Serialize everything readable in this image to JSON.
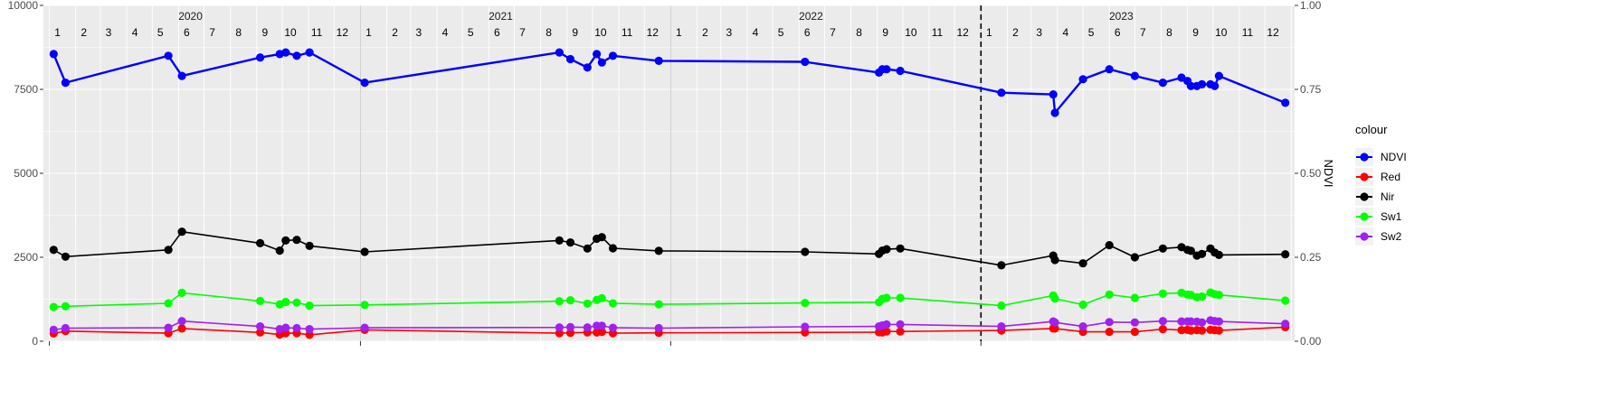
{
  "chart_data": {
    "type": "line",
    "y_left": {
      "range": [
        0,
        10000
      ],
      "ticks": [
        0,
        2500,
        5000,
        7500,
        10000
      ],
      "tick_labels": [
        "0",
        "2500",
        "5000",
        "7500",
        "10000"
      ]
    },
    "y_right": {
      "label": "NDVI",
      "range": [
        0,
        1
      ],
      "ticks": [
        0,
        0.25,
        0.5,
        0.75,
        1
      ],
      "tick_labels": [
        "0.00",
        "0.25",
        "0.50",
        "0.75",
        "1.00"
      ]
    },
    "x_range": [
      "2019-12-25",
      "2024-01-05"
    ],
    "years": [
      {
        "label": "2020",
        "date": "2020-06-15"
      },
      {
        "label": "2021",
        "date": "2021-06-15"
      },
      {
        "label": "2022",
        "date": "2022-06-15"
      },
      {
        "label": "2023",
        "date": "2023-06-15"
      }
    ],
    "month_labels": [
      "1",
      "2",
      "3",
      "4",
      "5",
      "6",
      "7",
      "8",
      "9",
      "10",
      "11",
      "12"
    ],
    "year_boundaries": [
      "2021-01-01",
      "2022-01-01",
      "2023-01-01"
    ],
    "dashed_line_date": "2023-01-01",
    "grid": true,
    "legend": {
      "title": "colour",
      "position": "right"
    },
    "series": [
      {
        "name": "NDVI",
        "color": "#0000FF",
        "axis": "right",
        "points": [
          [
            "2020-01-06",
            0.855
          ],
          [
            "2020-01-20",
            0.77
          ],
          [
            "2020-05-20",
            0.85
          ],
          [
            "2020-06-05",
            0.79
          ],
          [
            "2020-09-05",
            0.845
          ],
          [
            "2020-09-28",
            0.855
          ],
          [
            "2020-10-05",
            0.86
          ],
          [
            "2020-10-18",
            0.85
          ],
          [
            "2020-11-02",
            0.86
          ],
          [
            "2021-01-06",
            0.77
          ],
          [
            "2021-08-23",
            0.86
          ],
          [
            "2021-09-05",
            0.84
          ],
          [
            "2021-09-25",
            0.815
          ],
          [
            "2021-10-06",
            0.855
          ],
          [
            "2021-10-12",
            0.83
          ],
          [
            "2021-10-25",
            0.85
          ],
          [
            "2021-12-18",
            0.835
          ],
          [
            "2022-06-08",
            0.832
          ],
          [
            "2022-09-03",
            0.8
          ],
          [
            "2022-09-07",
            0.81
          ],
          [
            "2022-09-12",
            0.81
          ],
          [
            "2022-09-28",
            0.805
          ],
          [
            "2023-01-25",
            0.74
          ],
          [
            "2023-03-27",
            0.735
          ],
          [
            "2023-03-29",
            0.68
          ],
          [
            "2023-05-01",
            0.78
          ],
          [
            "2023-06-01",
            0.81
          ],
          [
            "2023-07-01",
            0.79
          ],
          [
            "2023-08-03",
            0.77
          ],
          [
            "2023-08-25",
            0.785
          ],
          [
            "2023-09-01",
            0.775
          ],
          [
            "2023-09-05",
            0.76
          ],
          [
            "2023-09-12",
            0.76
          ],
          [
            "2023-09-18",
            0.765
          ],
          [
            "2023-09-28",
            0.765
          ],
          [
            "2023-10-03",
            0.76
          ],
          [
            "2023-10-08",
            0.79
          ],
          [
            "2023-12-25",
            0.71
          ]
        ]
      },
      {
        "name": "Red",
        "color": "#FF0000",
        "axis": "left",
        "points": [
          [
            "2020-01-06",
            230
          ],
          [
            "2020-01-20",
            300
          ],
          [
            "2020-05-20",
            240
          ],
          [
            "2020-06-05",
            380
          ],
          [
            "2020-09-05",
            260
          ],
          [
            "2020-09-28",
            200
          ],
          [
            "2020-10-05",
            240
          ],
          [
            "2020-10-18",
            240
          ],
          [
            "2020-11-02",
            190
          ],
          [
            "2021-01-06",
            340
          ],
          [
            "2021-08-23",
            240
          ],
          [
            "2021-09-05",
            250
          ],
          [
            "2021-09-25",
            260
          ],
          [
            "2021-10-06",
            260
          ],
          [
            "2021-10-12",
            280
          ],
          [
            "2021-10-25",
            240
          ],
          [
            "2021-12-18",
            250
          ],
          [
            "2022-06-08",
            260
          ],
          [
            "2022-09-03",
            270
          ],
          [
            "2022-09-07",
            260
          ],
          [
            "2022-09-12",
            290
          ],
          [
            "2022-09-28",
            290
          ],
          [
            "2023-01-25",
            320
          ],
          [
            "2023-03-27",
            380
          ],
          [
            "2023-03-29",
            380
          ],
          [
            "2023-05-01",
            280
          ],
          [
            "2023-06-01",
            280
          ],
          [
            "2023-07-01",
            280
          ],
          [
            "2023-08-03",
            360
          ],
          [
            "2023-08-25",
            330
          ],
          [
            "2023-09-01",
            340
          ],
          [
            "2023-09-05",
            320
          ],
          [
            "2023-09-12",
            330
          ],
          [
            "2023-09-18",
            320
          ],
          [
            "2023-09-28",
            340
          ],
          [
            "2023-10-03",
            330
          ],
          [
            "2023-10-08",
            320
          ],
          [
            "2023-12-25",
            420
          ]
        ]
      },
      {
        "name": "Nir",
        "color": "#000000",
        "axis": "left",
        "points": [
          [
            "2020-01-06",
            2720
          ],
          [
            "2020-01-20",
            2520
          ],
          [
            "2020-05-20",
            2720
          ],
          [
            "2020-06-05",
            3260
          ],
          [
            "2020-09-05",
            2920
          ],
          [
            "2020-09-28",
            2700
          ],
          [
            "2020-10-05",
            3000
          ],
          [
            "2020-10-18",
            3020
          ],
          [
            "2020-11-02",
            2840
          ],
          [
            "2021-01-06",
            2660
          ],
          [
            "2021-08-23",
            3000
          ],
          [
            "2021-09-05",
            2940
          ],
          [
            "2021-09-25",
            2760
          ],
          [
            "2021-10-06",
            3050
          ],
          [
            "2021-10-12",
            3100
          ],
          [
            "2021-10-25",
            2770
          ],
          [
            "2021-12-18",
            2690
          ],
          [
            "2022-06-08",
            2660
          ],
          [
            "2022-09-03",
            2600
          ],
          [
            "2022-09-07",
            2700
          ],
          [
            "2022-09-12",
            2740
          ],
          [
            "2022-09-28",
            2760
          ],
          [
            "2023-01-25",
            2260
          ],
          [
            "2023-03-27",
            2550
          ],
          [
            "2023-03-29",
            2420
          ],
          [
            "2023-05-01",
            2320
          ],
          [
            "2023-06-01",
            2860
          ],
          [
            "2023-07-01",
            2500
          ],
          [
            "2023-08-03",
            2760
          ],
          [
            "2023-08-25",
            2800
          ],
          [
            "2023-09-01",
            2720
          ],
          [
            "2023-09-05",
            2690
          ],
          [
            "2023-09-12",
            2550
          ],
          [
            "2023-09-18",
            2600
          ],
          [
            "2023-09-28",
            2760
          ],
          [
            "2023-10-03",
            2640
          ],
          [
            "2023-10-08",
            2570
          ],
          [
            "2023-12-25",
            2590
          ]
        ]
      },
      {
        "name": "Sw1",
        "color": "#00FF00",
        "axis": "left",
        "points": [
          [
            "2020-01-06",
            1020
          ],
          [
            "2020-01-20",
            1040
          ],
          [
            "2020-05-20",
            1130
          ],
          [
            "2020-06-05",
            1440
          ],
          [
            "2020-09-05",
            1200
          ],
          [
            "2020-09-28",
            1100
          ],
          [
            "2020-10-05",
            1170
          ],
          [
            "2020-10-18",
            1150
          ],
          [
            "2020-11-02",
            1060
          ],
          [
            "2021-01-06",
            1080
          ],
          [
            "2021-08-23",
            1190
          ],
          [
            "2021-09-05",
            1220
          ],
          [
            "2021-09-25",
            1120
          ],
          [
            "2021-10-06",
            1230
          ],
          [
            "2021-10-12",
            1280
          ],
          [
            "2021-10-25",
            1130
          ],
          [
            "2021-12-18",
            1100
          ],
          [
            "2022-06-08",
            1140
          ],
          [
            "2022-09-03",
            1160
          ],
          [
            "2022-09-07",
            1260
          ],
          [
            "2022-09-12",
            1290
          ],
          [
            "2022-09-28",
            1290
          ],
          [
            "2023-01-25",
            1060
          ],
          [
            "2023-03-27",
            1360
          ],
          [
            "2023-03-29",
            1270
          ],
          [
            "2023-05-01",
            1090
          ],
          [
            "2023-06-01",
            1390
          ],
          [
            "2023-07-01",
            1290
          ],
          [
            "2023-08-03",
            1420
          ],
          [
            "2023-08-25",
            1440
          ],
          [
            "2023-09-01",
            1390
          ],
          [
            "2023-09-05",
            1380
          ],
          [
            "2023-09-12",
            1310
          ],
          [
            "2023-09-18",
            1330
          ],
          [
            "2023-09-28",
            1450
          ],
          [
            "2023-10-03",
            1400
          ],
          [
            "2023-10-08",
            1380
          ],
          [
            "2023-12-25",
            1210
          ]
        ]
      },
      {
        "name": "Sw2",
        "color": "#A020F0",
        "axis": "left",
        "points": [
          [
            "2020-01-06",
            340
          ],
          [
            "2020-01-20",
            390
          ],
          [
            "2020-05-20",
            400
          ],
          [
            "2020-06-05",
            600
          ],
          [
            "2020-09-05",
            440
          ],
          [
            "2020-09-28",
            360
          ],
          [
            "2020-10-05",
            400
          ],
          [
            "2020-10-18",
            390
          ],
          [
            "2020-11-02",
            360
          ],
          [
            "2021-01-06",
            400
          ],
          [
            "2021-08-23",
            410
          ],
          [
            "2021-09-05",
            420
          ],
          [
            "2021-09-25",
            410
          ],
          [
            "2021-10-06",
            460
          ],
          [
            "2021-10-12",
            460
          ],
          [
            "2021-10-25",
            400
          ],
          [
            "2021-12-18",
            390
          ],
          [
            "2022-06-08",
            430
          ],
          [
            "2022-09-03",
            440
          ],
          [
            "2022-09-07",
            470
          ],
          [
            "2022-09-12",
            500
          ],
          [
            "2022-09-28",
            500
          ],
          [
            "2023-01-25",
            440
          ],
          [
            "2023-03-27",
            590
          ],
          [
            "2023-03-29",
            560
          ],
          [
            "2023-05-01",
            440
          ],
          [
            "2023-06-01",
            570
          ],
          [
            "2023-07-01",
            560
          ],
          [
            "2023-08-03",
            600
          ],
          [
            "2023-08-25",
            590
          ],
          [
            "2023-09-01",
            590
          ],
          [
            "2023-09-05",
            590
          ],
          [
            "2023-09-12",
            580
          ],
          [
            "2023-09-18",
            560
          ],
          [
            "2023-09-28",
            620
          ],
          [
            "2023-10-03",
            600
          ],
          [
            "2023-10-08",
            590
          ],
          [
            "2023-12-25",
            520
          ]
        ]
      }
    ]
  }
}
